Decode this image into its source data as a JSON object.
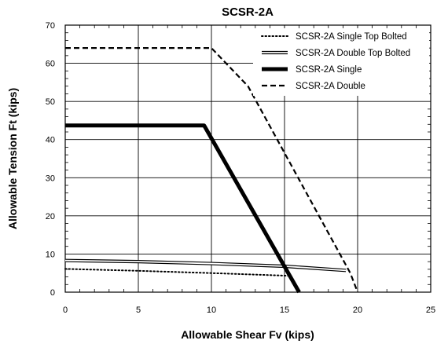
{
  "chart_data": {
    "type": "line",
    "title": "SCSR-2A",
    "xlabel": "Allowable Shear Fv (kips)",
    "ylabel": "Allowable Tension Ft (kips)",
    "xlim": [
      0,
      25
    ],
    "ylim": [
      0,
      70
    ],
    "xticks": [
      0,
      5,
      10,
      15,
      20,
      25
    ],
    "yticks": [
      0,
      10,
      20,
      30,
      40,
      50,
      60,
      70
    ],
    "grid": true,
    "legend_position": "top-right",
    "series": [
      {
        "name": "SCSR-2A Single Top Bolted",
        "style": "dotted",
        "x": [
          0,
          5,
          10,
          15.3
        ],
        "y": [
          6.1,
          5.6,
          5.0,
          4.3
        ]
      },
      {
        "name": "SCSR-2A Double Top Bolted",
        "style": "double",
        "x": [
          0,
          5,
          10,
          15,
          19.2
        ],
        "y": [
          8.3,
          8.0,
          7.5,
          6.8,
          5.7
        ]
      },
      {
        "name": "SCSR-2A Single",
        "style": "thick",
        "x": [
          0,
          9.5,
          16
        ],
        "y": [
          43.7,
          43.7,
          0
        ]
      },
      {
        "name": "SCSR-2A Double",
        "style": "dashed",
        "x": [
          0,
          10,
          11.5,
          12.5,
          15,
          17.5,
          19.5,
          20
        ],
        "y": [
          64,
          64,
          58,
          54,
          36.5,
          19,
          5,
          0
        ]
      }
    ]
  },
  "colors": {
    "line": "#000000",
    "grid": "#000000",
    "background": "#ffffff"
  }
}
